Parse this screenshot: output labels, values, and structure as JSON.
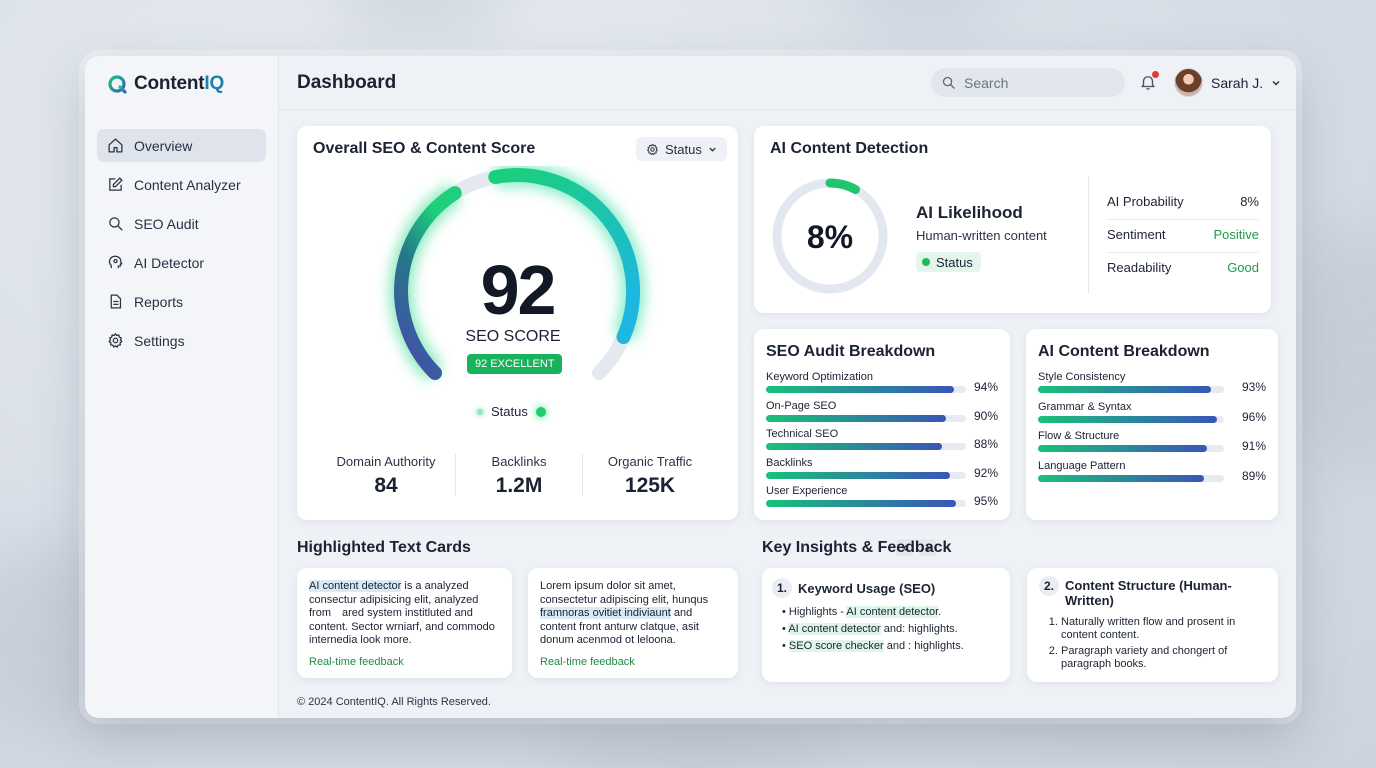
{
  "app": {
    "brand_main": "Content",
    "brand_accent": "IQ"
  },
  "sidebar": {
    "items": [
      {
        "label": "Overview",
        "icon": "home-icon"
      },
      {
        "label": "Content Analyzer",
        "icon": "edit-icon"
      },
      {
        "label": "SEO Audit",
        "icon": "search-icon"
      },
      {
        "label": "AI Detector",
        "icon": "ai-head-icon"
      },
      {
        "label": "Reports",
        "icon": "document-icon"
      },
      {
        "label": "Settings",
        "icon": "gear-icon"
      }
    ]
  },
  "header": {
    "title": "Dashboard",
    "search_placeholder": "Search",
    "user_name": "Sarah J."
  },
  "seo_card": {
    "title": "Overall SEO & Content Score",
    "status_button": "Status",
    "score": "92",
    "score_label": "SEO SCORE",
    "badge": "92 EXCELLENT",
    "gauge_fraction": 0.92,
    "status_label": "Status",
    "stats": [
      {
        "label": "Domain Authority",
        "value": "84"
      },
      {
        "label": "Backlinks",
        "value": "1.2M"
      },
      {
        "label": "Organic Traffic",
        "value": "125K"
      }
    ]
  },
  "ai_detection": {
    "title": "AI Content Detection",
    "percent": "8%",
    "ring_fraction": 0.08,
    "likelihood_title": "AI Likelihood",
    "likelihood_sub": "Human-written content",
    "status_label": "Status",
    "metrics": [
      {
        "label": "AI Probability",
        "value": "8%"
      },
      {
        "label": "Sentiment",
        "value": "Positive"
      },
      {
        "label": "Readability",
        "value": "Good"
      }
    ]
  },
  "seo_audit": {
    "title": "SEO Audit Breakdown",
    "items": [
      {
        "label": "Keyword Optimization",
        "value": "94%",
        "fraction": 0.94
      },
      {
        "label": "On-Page SEO",
        "value": "90%",
        "fraction": 0.9
      },
      {
        "label": "Technical SEO",
        "value": "88%",
        "fraction": 0.88
      },
      {
        "label": "Backlinks",
        "value": "92%",
        "fraction": 0.92
      },
      {
        "label": "User Experience",
        "value": "95%",
        "fraction": 0.95
      }
    ]
  },
  "ai_breakdown": {
    "title": "AI Content Breakdown",
    "items": [
      {
        "label": "Style Consistency",
        "value": "93%",
        "fraction": 0.93
      },
      {
        "label": "Grammar & Syntax",
        "value": "96%",
        "fraction": 0.96
      },
      {
        "label": "Flow & Structure",
        "value": "91%",
        "fraction": 0.91
      },
      {
        "label": "Language Pattern",
        "value": "89%",
        "fraction": 0.89
      }
    ]
  },
  "highlighted": {
    "title": "Highlighted Text Cards",
    "cards": [
      {
        "hl": "AI content detector",
        "text": " is a analyzed consectur adipisicing elit, analyzed from ared system institluted and content. Sector wrniarf, and commodo internedia look more.",
        "feedback": "Real-time feedback"
      },
      {
        "lead": "Lorem ipsum dolor sit amet, consectetur adipiscing elit, hunqus ",
        "hl": "framnoras ovitiet indiviaunt",
        "text": " and content front anturw clatque, asit donum acenmod ot leloona.",
        "feedback": "Real-time feedback"
      }
    ]
  },
  "insights": {
    "title": "Key Insights & Feedback",
    "cards": [
      {
        "num": "1.",
        "title": "Keyword Usage (SEO)",
        "bullets": [
          {
            "pre": "Highlights - ",
            "hl": "AI content detector",
            "post": "."
          },
          {
            "pre": "",
            "hl": "AI content detector",
            "post": " and: highlights."
          },
          {
            "pre": "",
            "hl": "SEO score checker",
            "post": " and : highlights."
          }
        ]
      },
      {
        "num": "2.",
        "title": "Content Structure (Human-Written)",
        "items": [
          "Naturally written flow and prosent in content content.",
          "Paragraph variety and chongert of paragraph books."
        ]
      }
    ]
  },
  "footer": {
    "copyright": "© 2024 ContentIQ. All Rights Reserved."
  },
  "colors": {
    "accent_green": "#19c17a",
    "accent_blue": "#3a55b8",
    "positive": "#1f9a4a"
  }
}
